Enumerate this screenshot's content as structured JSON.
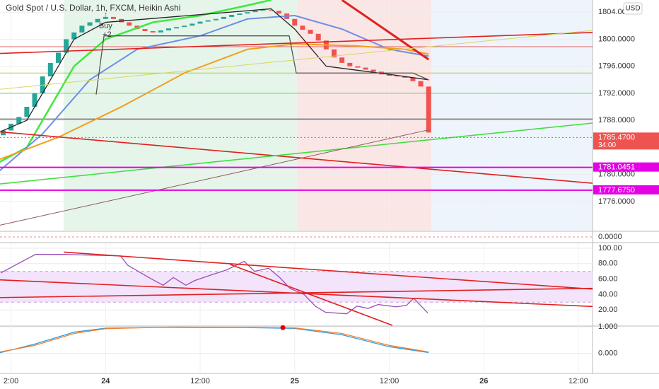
{
  "chart_data": [
    {
      "type": "candlestick",
      "title": "Gold Spot / U.S. Dollar, 1h, FXCM, Heikin Ashi",
      "currency": "USD",
      "xlim": [
        -1.4,
        73.8
      ],
      "xticks": [
        {
          "value": 0,
          "label": "2:00"
        },
        {
          "value": 12,
          "label": "24"
        },
        {
          "value": 24,
          "label": "12:00"
        },
        {
          "value": 36,
          "label": "25"
        },
        {
          "value": 48,
          "label": "12:00"
        },
        {
          "value": 60,
          "label": "26"
        },
        {
          "value": 72,
          "label": "12:00"
        }
      ],
      "ylim": [
        1771.7,
        1805.8
      ],
      "yticks": [
        {
          "value": 1804,
          "label": "1804.0000"
        },
        {
          "value": 1800,
          "label": "1800.0000"
        },
        {
          "value": 1796,
          "label": "1796.0000"
        },
        {
          "value": 1792,
          "label": "1792.0000"
        },
        {
          "value": 1788,
          "label": "1788.0000"
        },
        {
          "value": 1780,
          "label": "1780.0000"
        },
        {
          "value": 1776,
          "label": "1776.0000"
        }
      ],
      "x": [
        -1,
        0,
        1,
        2,
        3,
        4,
        5,
        6,
        7,
        8,
        9,
        10,
        11,
        12,
        13,
        14,
        15,
        16,
        17,
        18,
        19,
        20,
        21,
        22,
        23,
        24,
        25,
        26,
        27,
        28,
        29,
        30,
        31,
        32,
        33,
        34,
        35,
        36,
        37,
        38,
        39,
        40,
        41,
        42,
        43,
        44,
        45,
        46,
        47,
        48,
        49,
        50,
        51,
        52,
        53
      ],
      "open": [
        1785.8,
        1786.5,
        1787.5,
        1788.5,
        1790,
        1792,
        1794.5,
        1796.5,
        1798,
        1800,
        1801,
        1802,
        1802.5,
        1803,
        1803.3,
        1803,
        1802.5,
        1802,
        1801.5,
        1801.2,
        1801,
        1801.3,
        1801.6,
        1801.8,
        1802,
        1802.3,
        1802.6,
        1802.8,
        1803,
        1803.3,
        1803.6,
        1803.8,
        1804,
        1804.2,
        1804.3,
        1804.2,
        1803.8,
        1803,
        1802,
        1801.4,
        1800.8,
        1799.8,
        1798.5,
        1797.3,
        1796.5,
        1796,
        1795.8,
        1795.5,
        1795.2,
        1794.8,
        1794.6,
        1794.5,
        1794.3,
        1793.8,
        1793
      ],
      "close": [
        1786.5,
        1787.5,
        1788.5,
        1790,
        1792,
        1794.5,
        1796.5,
        1798,
        1800,
        1801,
        1802,
        1802.5,
        1803,
        1803.3,
        1803,
        1802.5,
        1802,
        1801.5,
        1801.2,
        1801,
        1801.3,
        1801.6,
        1801.8,
        1802,
        1802.3,
        1802.6,
        1802.8,
        1803,
        1803.3,
        1803.6,
        1803.8,
        1804,
        1804.2,
        1804.3,
        1804.2,
        1803.8,
        1803,
        1802,
        1801.4,
        1800.8,
        1799.8,
        1798.5,
        1797.3,
        1796.5,
        1796,
        1795.8,
        1795.5,
        1795.2,
        1794.8,
        1794.6,
        1794.5,
        1794.3,
        1793.8,
        1793,
        1786.2
      ],
      "up_color": "#26a69a",
      "down_color": "#ef5350",
      "lines": [
        {
          "color": "#3ee83e",
          "width": 2.5,
          "x": [
            -2,
            2,
            5,
            8,
            12,
            18,
            24,
            30,
            33
          ],
          "values": [
            1781.5,
            1784,
            1790,
            1796,
            1800,
            1802.5,
            1803.5,
            1805,
            1805.8
          ]
        },
        {
          "color": "#6d8fe8",
          "width": 2,
          "x": [
            -2,
            4,
            10,
            16,
            24,
            30,
            36,
            42,
            48,
            53
          ],
          "values": [
            1780,
            1786,
            1794,
            1798.5,
            1800.5,
            1803,
            1803.5,
            1801.5,
            1798.5,
            1797.5
          ]
        },
        {
          "color": "#f0a020",
          "width": 2,
          "x": [
            -2,
            6,
            14,
            22,
            30,
            36,
            44,
            50,
            53
          ],
          "values": [
            1782,
            1785.5,
            1790,
            1795,
            1798.5,
            1799.3,
            1799,
            1798.5,
            1797.8
          ]
        },
        {
          "color": "#222222",
          "width": 1.3,
          "x": [
            -2,
            2,
            5,
            8,
            12,
            33,
            36,
            40,
            48,
            53
          ],
          "values": [
            1786,
            1788,
            1794,
            1800,
            1802.5,
            1804.5,
            1801.5,
            1796,
            1794.8,
            1794
          ]
        },
        {
          "color": "#555555",
          "width": 1.3,
          "x": [
            10.8,
            11.8,
            35.3,
            36.2,
            51,
            53
          ],
          "values": [
            1791.8,
            1800.5,
            1800.5,
            1795,
            1795,
            1794
          ]
        },
        {
          "color": "#e02020",
          "width": 1.6,
          "x": [
            -1.4,
            73.8
          ],
          "values": [
            1797.9,
            1801
          ]
        },
        {
          "color": "#e02020",
          "width": 1.6,
          "x": [
            -1.4,
            73.8
          ],
          "values": [
            1786.3,
            1778.7
          ]
        },
        {
          "color": "#e02020",
          "width": 3,
          "x": [
            42,
            53
          ],
          "values": [
            1805.8,
            1797
          ]
        },
        {
          "color": "#44dd44",
          "width": 1.6,
          "x": [
            -1.4,
            73.8
          ],
          "values": [
            1778.6,
            1787.6
          ]
        },
        {
          "color": "#8b5a5a",
          "width": 1,
          "x": [
            -1.4,
            53
          ],
          "values": [
            1772.5,
            1786.6
          ]
        },
        {
          "color": "#d4d860",
          "width": 1,
          "x": [
            -1.4,
            73.8
          ],
          "values": [
            1792.6,
            1801.3
          ]
        }
      ],
      "hlines": [
        {
          "value": 1792,
          "color": "#6ecf6e"
        },
        {
          "value": 1788.2,
          "color": "#333333"
        },
        {
          "value": 1795,
          "color": "#b6c848"
        },
        {
          "value": 1798.9,
          "color": "#e06060"
        }
      ],
      "price_labels": [
        {
          "value": 1785.47,
          "label": "1785.4700",
          "color": "#ef5350",
          "countdown": "34:00"
        },
        {
          "value": 1781.0451,
          "label": "1781.0451",
          "color": "#e600e6"
        },
        {
          "value": 1777.675,
          "label": "1777.6750",
          "color": "#e600e6"
        }
      ],
      "signal": {
        "x": 12,
        "value": 1801.9,
        "label": "Buy",
        "count": "+2"
      }
    },
    {
      "type": "histogram",
      "ylim": [
        -0.5,
        0.5
      ],
      "yticks": [
        {
          "value": 0,
          "label": "0.0000"
        }
      ]
    },
    {
      "type": "line",
      "ylim": [
        0,
        106.4
      ],
      "yticks": [
        {
          "value": 100,
          "label": "100.00"
        },
        {
          "value": 80,
          "label": "80.00"
        },
        {
          "value": 60,
          "label": "60.00"
        },
        {
          "value": 40,
          "label": "40.00"
        },
        {
          "value": 20,
          "label": "20.00"
        }
      ],
      "band": [
        30,
        70
      ],
      "series": [
        {
          "color": "#9b4fb8",
          "x": [
            -1.3,
            3.1,
            6.7,
            13.9,
            14.8,
            17.5,
            19.3,
            20.6,
            22.2,
            23.3,
            25.6,
            27.4,
            29.6,
            30.9,
            32.7,
            34.1,
            35.4,
            37.2,
            38.6,
            39.9,
            42.6,
            43.9,
            45.3,
            46.6,
            48.9,
            50.2,
            51.1,
            52.9
          ],
          "values": [
            68,
            92,
            92,
            90,
            78,
            62,
            52,
            62,
            52,
            58,
            66,
            72,
            83,
            70,
            74,
            62,
            48,
            40,
            25,
            17,
            15,
            25,
            22,
            27,
            24,
            26,
            35,
            16
          ]
        }
      ],
      "lines": [
        {
          "color": "#e02020",
          "x": [
            -1.4,
            73.8
          ],
          "values": [
            59,
            24.5
          ]
        },
        {
          "color": "#e02020",
          "x": [
            6.7,
            73.8
          ],
          "values": [
            95,
            47
          ]
        },
        {
          "color": "#e02020",
          "x": [
            -1.4,
            73.8
          ],
          "values": [
            36,
            48
          ]
        },
        {
          "color": "#e02020",
          "x": [
            27.8,
            48.4
          ],
          "values": [
            79,
            0
          ]
        }
      ]
    },
    {
      "type": "line",
      "ylim": [
        -0.76,
        1.03
      ],
      "yticks": [
        {
          "value": 1,
          "label": "1.000"
        },
        {
          "value": 0,
          "label": "0.000"
        }
      ],
      "series": [
        {
          "color": "#2f9be0",
          "x": [
            -1.4,
            3,
            8,
            12,
            20,
            30,
            36,
            42,
            48,
            53
          ],
          "values": [
            0.02,
            0.35,
            0.8,
            0.95,
            0.98,
            0.97,
            0.94,
            0.7,
            0.25,
            0.03
          ]
        },
        {
          "color": "#f08030",
          "x": [
            -1.4,
            3,
            8,
            12,
            20,
            30,
            36,
            42,
            48,
            53
          ],
          "values": [
            0.05,
            0.3,
            0.75,
            0.93,
            0.99,
            0.98,
            0.96,
            0.75,
            0.3,
            0.05
          ]
        }
      ],
      "dot": {
        "x": 34.5,
        "value": 0.97,
        "color": "#e00000"
      }
    }
  ]
}
